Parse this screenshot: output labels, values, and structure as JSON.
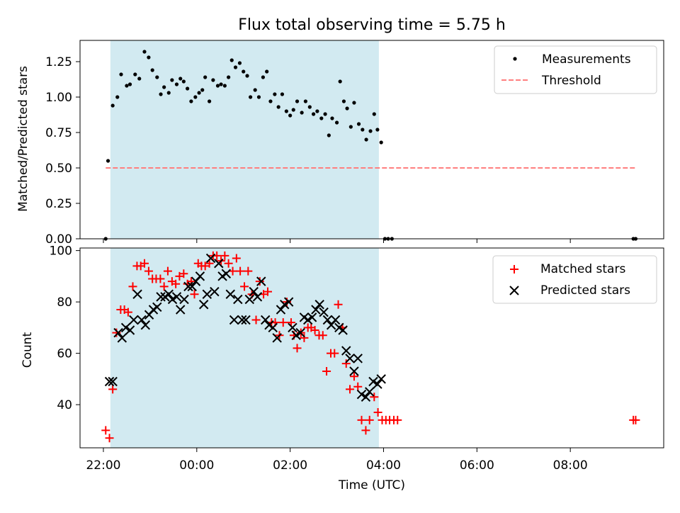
{
  "figure": {
    "title": "Flux total observing time = 5.75 h",
    "xlabel": "Time (UTC)",
    "xtick_labels": [
      "22:00",
      "00:00",
      "02:00",
      "04:00",
      "06:00",
      "08:00"
    ]
  },
  "colors": {
    "shade": "#add8e6",
    "measurements": "#000000",
    "threshold": "#ff7f7f",
    "matched": "#ff0000",
    "predicted": "#000000"
  },
  "chart_data": [
    {
      "type": "scatter",
      "ylabel": "Matched/Predicted stars",
      "xunit": "hours relative to 00:00 UTC",
      "xlim": [
        -2.5,
        10
      ],
      "ylim": [
        0,
        1.4
      ],
      "yticks": [
        0.0,
        0.25,
        0.5,
        0.75,
        1.0,
        1.25
      ],
      "ytick_labels": [
        "0.00",
        "0.25",
        "0.50",
        "0.75",
        "1.00",
        "1.25"
      ],
      "observing_window": [
        -1.85,
        3.9
      ],
      "legend": {
        "position": "upper right",
        "measurements_label": "Measurements",
        "threshold_label": "Threshold"
      },
      "threshold": {
        "value": 0.5,
        "x_range": [
          -1.95,
          9.4
        ]
      },
      "measurements": [
        [
          -1.95,
          0.0
        ],
        [
          -1.9,
          0.55
        ],
        [
          -1.8,
          0.94
        ],
        [
          -1.7,
          1.0
        ],
        [
          -1.62,
          1.16
        ],
        [
          -1.5,
          1.08
        ],
        [
          -1.43,
          1.09
        ],
        [
          -1.32,
          1.16
        ],
        [
          -1.23,
          1.13
        ],
        [
          -1.12,
          1.32
        ],
        [
          -1.03,
          1.28
        ],
        [
          -0.95,
          1.19
        ],
        [
          -0.85,
          1.14
        ],
        [
          -0.77,
          1.02
        ],
        [
          -0.7,
          1.07
        ],
        [
          -0.6,
          1.03
        ],
        [
          -0.53,
          1.12
        ],
        [
          -0.43,
          1.09
        ],
        [
          -0.35,
          1.13
        ],
        [
          -0.28,
          1.11
        ],
        [
          -0.2,
          1.06
        ],
        [
          -0.12,
          0.97
        ],
        [
          -0.03,
          1.0
        ],
        [
          0.05,
          1.03
        ],
        [
          0.12,
          1.05
        ],
        [
          0.18,
          1.14
        ],
        [
          0.27,
          0.97
        ],
        [
          0.35,
          1.12
        ],
        [
          0.45,
          1.08
        ],
        [
          0.52,
          1.09
        ],
        [
          0.6,
          1.08
        ],
        [
          0.68,
          1.14
        ],
        [
          0.75,
          1.26
        ],
        [
          0.83,
          1.21
        ],
        [
          0.92,
          1.24
        ],
        [
          1.0,
          1.18
        ],
        [
          1.08,
          1.15
        ],
        [
          1.15,
          1.0
        ],
        [
          1.25,
          1.05
        ],
        [
          1.33,
          1.0
        ],
        [
          1.42,
          1.14
        ],
        [
          1.5,
          1.18
        ],
        [
          1.58,
          0.97
        ],
        [
          1.67,
          1.02
        ],
        [
          1.75,
          0.93
        ],
        [
          1.83,
          1.02
        ],
        [
          1.92,
          0.9
        ],
        [
          2.0,
          0.87
        ],
        [
          2.07,
          0.91
        ],
        [
          2.15,
          0.97
        ],
        [
          2.25,
          0.89
        ],
        [
          2.33,
          0.97
        ],
        [
          2.42,
          0.93
        ],
        [
          2.5,
          0.88
        ],
        [
          2.58,
          0.9
        ],
        [
          2.67,
          0.85
        ],
        [
          2.75,
          0.88
        ],
        [
          2.83,
          0.73
        ],
        [
          2.9,
          0.85
        ],
        [
          3.0,
          0.82
        ],
        [
          3.07,
          1.11
        ],
        [
          3.15,
          0.97
        ],
        [
          3.22,
          0.92
        ],
        [
          3.3,
          0.79
        ],
        [
          3.37,
          0.96
        ],
        [
          3.47,
          0.81
        ],
        [
          3.55,
          0.77
        ],
        [
          3.63,
          0.7
        ],
        [
          3.72,
          0.76
        ],
        [
          3.8,
          0.88
        ],
        [
          3.87,
          0.77
        ],
        [
          3.95,
          0.68
        ],
        [
          4.03,
          0.0
        ],
        [
          4.1,
          0.0
        ],
        [
          4.18,
          0.0
        ],
        [
          9.35,
          0.0
        ],
        [
          9.4,
          0.0
        ]
      ]
    },
    {
      "type": "scatter",
      "ylabel": "Count",
      "xunit": "hours relative to 00:00 UTC",
      "xlim": [
        -2.5,
        10
      ],
      "ylim": [
        23.2,
        101
      ],
      "yticks": [
        40,
        60,
        80,
        100
      ],
      "ytick_labels": [
        "40",
        "60",
        "80",
        "100"
      ],
      "observing_window": [
        -1.85,
        3.9
      ],
      "legend": {
        "position": "upper right",
        "matched_label": "Matched stars",
        "predicted_label": "Predicted stars"
      },
      "matched": [
        [
          -1.95,
          30
        ],
        [
          -1.87,
          27
        ],
        [
          -1.8,
          46
        ],
        [
          -1.72,
          68
        ],
        [
          -1.63,
          77
        ],
        [
          -1.55,
          77
        ],
        [
          -1.47,
          76
        ],
        [
          -1.37,
          86
        ],
        [
          -1.28,
          94
        ],
        [
          -1.2,
          94
        ],
        [
          -1.12,
          95
        ],
        [
          -1.03,
          92
        ],
        [
          -0.95,
          89
        ],
        [
          -0.87,
          89
        ],
        [
          -0.78,
          89
        ],
        [
          -0.7,
          86
        ],
        [
          -0.62,
          92
        ],
        [
          -0.53,
          88
        ],
        [
          -0.45,
          87
        ],
        [
          -0.37,
          90
        ],
        [
          -0.28,
          91
        ],
        [
          -0.2,
          87
        ],
        [
          -0.12,
          88
        ],
        [
          -0.05,
          83
        ],
        [
          0.03,
          95
        ],
        [
          0.1,
          94
        ],
        [
          0.18,
          94
        ],
        [
          0.27,
          95
        ],
        [
          0.35,
          98
        ],
        [
          0.43,
          98
        ],
        [
          0.52,
          96
        ],
        [
          0.6,
          98
        ],
        [
          0.68,
          95
        ],
        [
          0.77,
          92
        ],
        [
          0.85,
          97
        ],
        [
          0.93,
          92
        ],
        [
          1.02,
          86
        ],
        [
          1.1,
          92
        ],
        [
          1.18,
          83
        ],
        [
          1.27,
          73
        ],
        [
          1.35,
          88
        ],
        [
          1.43,
          83
        ],
        [
          1.52,
          84
        ],
        [
          1.6,
          72
        ],
        [
          1.68,
          72
        ],
        [
          1.77,
          67
        ],
        [
          1.85,
          72
        ],
        [
          1.93,
          80
        ],
        [
          2.02,
          72
        ],
        [
          2.08,
          67
        ],
        [
          2.15,
          62
        ],
        [
          2.23,
          68
        ],
        [
          2.3,
          66
        ],
        [
          2.38,
          70
        ],
        [
          2.45,
          70
        ],
        [
          2.53,
          69
        ],
        [
          2.62,
          67
        ],
        [
          2.7,
          67
        ],
        [
          2.78,
          53
        ],
        [
          2.87,
          60
        ],
        [
          2.95,
          60
        ],
        [
          3.03,
          79
        ],
        [
          3.12,
          70
        ],
        [
          3.2,
          56
        ],
        [
          3.28,
          46
        ],
        [
          3.37,
          51
        ],
        [
          3.45,
          47
        ],
        [
          3.53,
          34
        ],
        [
          3.62,
          30
        ],
        [
          3.7,
          34
        ],
        [
          3.8,
          43
        ],
        [
          3.88,
          37
        ],
        [
          3.97,
          34
        ],
        [
          4.05,
          34
        ],
        [
          4.13,
          34
        ],
        [
          4.22,
          34
        ],
        [
          4.3,
          34
        ],
        [
          9.35,
          34
        ],
        [
          9.4,
          34
        ]
      ],
      "predicted": [
        [
          -1.87,
          49
        ],
        [
          -1.8,
          49
        ],
        [
          -1.68,
          68
        ],
        [
          -1.6,
          66
        ],
        [
          -1.52,
          70
        ],
        [
          -1.43,
          69
        ],
        [
          -1.35,
          73
        ],
        [
          -1.27,
          83
        ],
        [
          -1.18,
          73
        ],
        [
          -1.1,
          71
        ],
        [
          -1.02,
          75
        ],
        [
          -0.93,
          77
        ],
        [
          -0.85,
          78
        ],
        [
          -0.77,
          82
        ],
        [
          -0.68,
          82
        ],
        [
          -0.6,
          83
        ],
        [
          -0.52,
          81
        ],
        [
          -0.43,
          82
        ],
        [
          -0.35,
          77
        ],
        [
          -0.27,
          81
        ],
        [
          -0.18,
          86
        ],
        [
          -0.1,
          86
        ],
        [
          -0.02,
          88
        ],
        [
          0.07,
          90
        ],
        [
          0.15,
          79
        ],
        [
          0.22,
          83
        ],
        [
          0.3,
          97
        ],
        [
          0.38,
          84
        ],
        [
          0.47,
          95
        ],
        [
          0.55,
          90
        ],
        [
          0.63,
          91
        ],
        [
          0.72,
          83
        ],
        [
          0.8,
          73
        ],
        [
          0.88,
          81
        ],
        [
          0.97,
          73
        ],
        [
          1.05,
          73
        ],
        [
          1.13,
          81
        ],
        [
          1.22,
          84
        ],
        [
          1.3,
          82
        ],
        [
          1.38,
          88
        ],
        [
          1.47,
          73
        ],
        [
          1.55,
          71
        ],
        [
          1.63,
          70
        ],
        [
          1.72,
          66
        ],
        [
          1.8,
          77
        ],
        [
          1.88,
          79
        ],
        [
          1.97,
          80
        ],
        [
          2.05,
          70
        ],
        [
          2.13,
          67
        ],
        [
          2.22,
          68
        ],
        [
          2.3,
          74
        ],
        [
          2.38,
          73
        ],
        [
          2.47,
          74
        ],
        [
          2.55,
          77
        ],
        [
          2.63,
          79
        ],
        [
          2.72,
          76
        ],
        [
          2.8,
          73
        ],
        [
          2.88,
          71
        ],
        [
          2.97,
          73
        ],
        [
          3.05,
          70
        ],
        [
          3.13,
          69
        ],
        [
          3.2,
          61
        ],
        [
          3.28,
          58
        ],
        [
          3.37,
          53
        ],
        [
          3.45,
          58
        ],
        [
          3.53,
          44
        ],
        [
          3.62,
          43
        ],
        [
          3.7,
          45
        ],
        [
          3.78,
          49
        ],
        [
          3.87,
          48
        ],
        [
          3.95,
          50
        ]
      ]
    }
  ]
}
